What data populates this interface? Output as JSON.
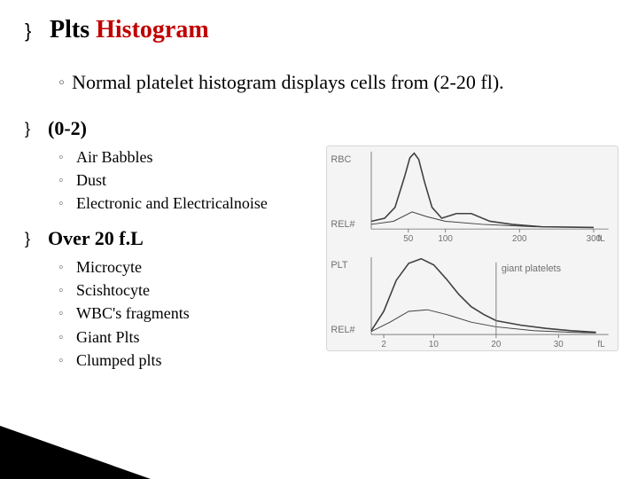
{
  "title": {
    "prefix": "Plts",
    "rest": " Histogram"
  },
  "intro_line": "Normal platelet histogram displays cells from (2-20 fl).",
  "section_a": {
    "heading": "(0-2)",
    "items": [
      "Air Babbles",
      "Dust",
      "Electronic and Electricalnoise"
    ]
  },
  "section_b": {
    "heading": "Over 20 f.L",
    "items": [
      "Microcyte",
      "Scishtocyte",
      "WBC's fragments",
      "Giant Plts",
      "Clumped plts"
    ]
  },
  "figure": {
    "bg": "#f4f4f4",
    "border": "#d7d7d7",
    "axis_color": "#808080",
    "curve_color": "#404040",
    "label_color": "#707070",
    "label_fontsize": 11,
    "rbc": {
      "label_left": "RBC",
      "label_y": "REL#",
      "ticks": [
        "50",
        "100",
        "200",
        "300"
      ],
      "unit": "fL",
      "main_curve": [
        [
          0,
          0.1
        ],
        [
          18,
          0.14
        ],
        [
          32,
          0.28
        ],
        [
          45,
          0.68
        ],
        [
          52,
          0.92
        ],
        [
          58,
          0.98
        ],
        [
          64,
          0.9
        ],
        [
          72,
          0.6
        ],
        [
          82,
          0.28
        ],
        [
          95,
          0.14
        ],
        [
          115,
          0.2
        ],
        [
          135,
          0.2
        ],
        [
          160,
          0.1
        ],
        [
          190,
          0.06
        ],
        [
          230,
          0.03
        ],
        [
          300,
          0.02
        ]
      ],
      "minor_curve": [
        [
          0,
          0.06
        ],
        [
          30,
          0.1
        ],
        [
          55,
          0.22
        ],
        [
          75,
          0.16
        ],
        [
          100,
          0.1
        ],
        [
          150,
          0.06
        ],
        [
          220,
          0.03
        ],
        [
          300,
          0.02
        ]
      ],
      "xlim": [
        0,
        320
      ]
    },
    "plt": {
      "label_left": "PLT",
      "label_y": "REL#",
      "ticks": [
        "2",
        "10",
        "20",
        "30"
      ],
      "tick_x": [
        2,
        10,
        20,
        30
      ],
      "unit": "fL",
      "annotation": "giant platelets",
      "main_curve": [
        [
          0,
          0.05
        ],
        [
          2,
          0.3
        ],
        [
          4,
          0.7
        ],
        [
          6,
          0.92
        ],
        [
          8,
          0.98
        ],
        [
          10,
          0.9
        ],
        [
          12,
          0.72
        ],
        [
          14,
          0.52
        ],
        [
          16,
          0.36
        ],
        [
          18,
          0.26
        ],
        [
          20,
          0.18
        ],
        [
          24,
          0.12
        ],
        [
          28,
          0.08
        ],
        [
          32,
          0.05
        ],
        [
          36,
          0.03
        ]
      ],
      "minor_curve": [
        [
          0,
          0.04
        ],
        [
          3,
          0.16
        ],
        [
          6,
          0.3
        ],
        [
          9,
          0.32
        ],
        [
          12,
          0.26
        ],
        [
          16,
          0.16
        ],
        [
          20,
          0.1
        ],
        [
          26,
          0.05
        ],
        [
          32,
          0.03
        ],
        [
          36,
          0.02
        ]
      ],
      "vline_x": 20,
      "xlim": [
        0,
        38
      ]
    }
  },
  "wedge": {
    "fill": "#000000"
  }
}
